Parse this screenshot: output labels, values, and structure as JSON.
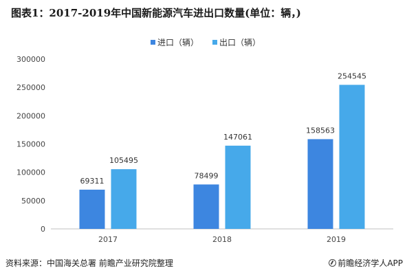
{
  "title": "图表1：2017-2019年中国新能源汽车进出口数量(单位：辆，)",
  "source": "资料来源：中国海关总署 前瞻产业研究院整理",
  "brand": "前瞻经济学人APP",
  "chart_data": {
    "type": "bar",
    "categories": [
      "2017",
      "2018",
      "2019"
    ],
    "series": [
      {
        "name": "进口（辆）",
        "values": [
          69311,
          78499,
          158563
        ],
        "color": "#3d86e0"
      },
      {
        "name": "出口（辆）",
        "values": [
          105495,
          147061,
          254545
        ],
        "color": "#46a9ea"
      }
    ],
    "yticks": [
      0,
      50000,
      100000,
      150000,
      200000,
      250000,
      300000
    ],
    "ylim": [
      0,
      300000
    ],
    "legend_position": "top-center",
    "grid": false
  }
}
